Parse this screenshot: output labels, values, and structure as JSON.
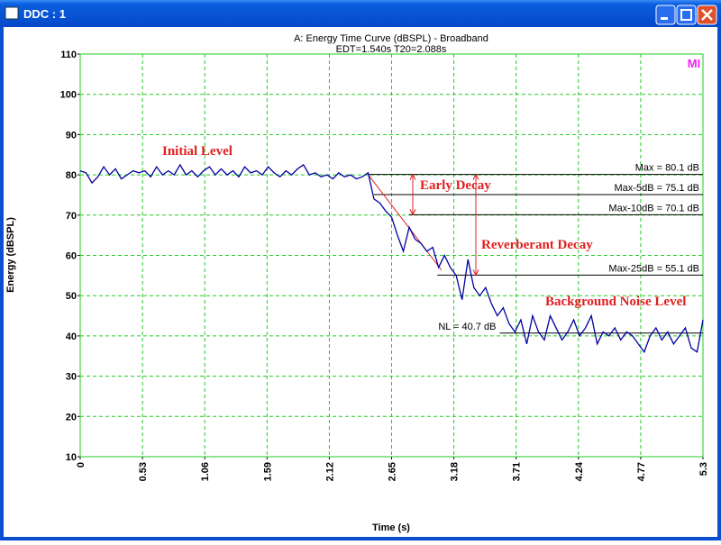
{
  "window": {
    "title": "DDC : 1"
  },
  "chart_data": {
    "type": "line",
    "title": "A: Energy Time Curve (dBSPL) - Broadband",
    "subtitle": "EDT=1.540s  T20=2.088s",
    "logo": "MI",
    "x_label": "Time (s)",
    "y_label": "Energy (dBSPL)",
    "xlim": [
      0,
      5.3
    ],
    "xticks": [
      0,
      0.53,
      1.06,
      1.59,
      2.12,
      2.65,
      3.18,
      3.71,
      4.24,
      4.77,
      5.3
    ],
    "ylim": [
      10,
      110
    ],
    "yticks": [
      10,
      20,
      30,
      40,
      50,
      60,
      70,
      80,
      90,
      100,
      110
    ],
    "grid": true,
    "x": [
      0,
      0.05,
      0.1,
      0.15,
      0.2,
      0.25,
      0.3,
      0.35,
      0.4,
      0.45,
      0.5,
      0.55,
      0.6,
      0.65,
      0.7,
      0.75,
      0.8,
      0.85,
      0.9,
      0.95,
      1.0,
      1.05,
      1.1,
      1.15,
      1.2,
      1.25,
      1.3,
      1.35,
      1.4,
      1.45,
      1.5,
      1.55,
      1.6,
      1.65,
      1.7,
      1.75,
      1.8,
      1.85,
      1.9,
      1.95,
      2.0,
      2.05,
      2.1,
      2.15,
      2.2,
      2.25,
      2.3,
      2.35,
      2.4,
      2.45,
      2.5,
      2.55,
      2.6,
      2.65,
      2.7,
      2.75,
      2.8,
      2.85,
      2.9,
      2.95,
      3.0,
      3.05,
      3.1,
      3.15,
      3.2,
      3.25,
      3.3,
      3.35,
      3.4,
      3.45,
      3.5,
      3.55,
      3.6,
      3.65,
      3.7,
      3.75,
      3.8,
      3.85,
      3.9,
      3.95,
      4.0,
      4.05,
      4.1,
      4.15,
      4.2,
      4.25,
      4.3,
      4.35,
      4.4,
      4.45,
      4.5,
      4.55,
      4.6,
      4.65,
      4.7,
      4.75,
      4.8,
      4.85,
      4.9,
      4.95,
      5.0,
      5.05,
      5.1,
      5.15,
      5.2,
      5.25,
      5.3
    ],
    "series": [
      {
        "color": "#0000a0",
        "values": [
          81,
          80.5,
          78,
          79.5,
          82,
          80,
          81.5,
          79,
          80,
          81,
          80.5,
          81,
          79.5,
          82,
          80,
          81,
          80,
          82.5,
          80,
          81,
          79.5,
          81,
          82,
          80,
          81.5,
          80,
          81,
          79.5,
          82,
          80.5,
          81,
          80,
          82,
          80.5,
          79.5,
          81,
          80,
          81.5,
          82.5,
          80,
          80.5,
          79.5,
          80,
          79,
          80.5,
          79.5,
          80,
          79,
          79.5,
          80.5,
          74,
          73,
          71,
          69.5,
          65,
          61,
          67,
          64,
          63,
          61,
          62,
          57,
          60,
          57,
          55,
          49,
          59,
          52,
          50,
          52,
          48,
          45,
          47,
          43,
          41,
          44,
          38,
          45,
          41,
          39,
          45,
          42,
          39,
          41,
          44,
          40,
          42,
          45,
          38,
          41,
          40,
          42,
          39,
          41,
          40,
          38,
          36,
          40,
          42,
          39,
          41,
          38,
          40,
          42,
          37,
          36,
          44
        ]
      }
    ],
    "reference_lines": [
      {
        "label": "Max =  80.1 dB",
        "value": 80.1,
        "x_start": 2.45
      },
      {
        "label": "Max-5dB =  75.1 dB",
        "value": 75.1,
        "x_start": 2.5
      },
      {
        "label": "Max-10dB =  70.1 dB",
        "value": 70.1,
        "x_start": 2.8
      },
      {
        "label": "Max-25dB =  55.1 dB",
        "value": 55.1,
        "x_start": 3.04
      },
      {
        "label": "NL =  40.7 dB",
        "value": 40.7,
        "x_start": 3.57
      }
    ],
    "annotations": [
      "Initial Level",
      "Early Decay",
      "Reverberant Decay",
      "Background Noise Level"
    ]
  }
}
